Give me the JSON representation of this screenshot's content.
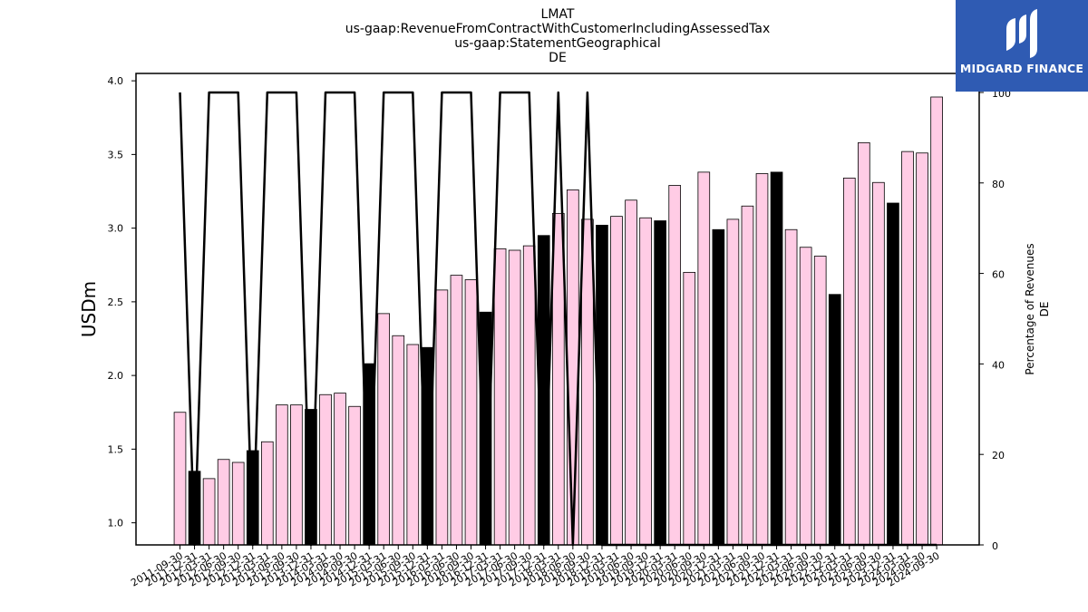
{
  "brand": {
    "name": "MIDGARD FINANCE",
    "logo_icon": "midgard-logo-icon",
    "background": "#2f5bb3"
  },
  "chart_data": {
    "type": "bar",
    "title_lines": [
      "LMAT",
      "us-gaap:RevenueFromContractWithCustomerIncludingAssessedTax",
      "us-gaap:StatementGeographical",
      "DE"
    ],
    "ylabel": "USDm",
    "y2label_lines": [
      "Percentage of Revenues",
      "DE"
    ],
    "ylim": [
      0.85,
      4.05
    ],
    "yticks": [
      1.0,
      1.5,
      2.0,
      2.5,
      3.0,
      3.5,
      4.0
    ],
    "y2lim": [
      0,
      104.2
    ],
    "y2ticks": [
      0,
      20,
      40,
      60,
      80,
      100
    ],
    "colors": {
      "quarterly": "#ffcce5",
      "annual": "#000000",
      "line": "#000000"
    },
    "categories": [
      "2011-09-30",
      "2011-12-31",
      "2012-03-31",
      "2012-06-30",
      "2012-09-30",
      "2012-12-31",
      "2013-03-31",
      "2013-06-30",
      "2013-09-30",
      "2013-12-31",
      "2014-03-31",
      "2014-06-30",
      "2014-09-30",
      "2014-12-31",
      "2015-03-31",
      "2015-06-30",
      "2015-09-30",
      "2015-12-31",
      "2016-03-31",
      "2016-06-30",
      "2016-09-30",
      "2016-12-31",
      "2017-03-31",
      "2017-06-30",
      "2017-09-30",
      "2017-12-31",
      "2018-03-31",
      "2018-06-30",
      "2018-09-30",
      "2018-12-31",
      "2019-03-31",
      "2019-06-30",
      "2019-09-30",
      "2019-12-31",
      "2020-03-31",
      "2020-06-30",
      "2020-09-30",
      "2020-12-31",
      "2021-03-31",
      "2021-06-30",
      "2021-09-30",
      "2021-12-31",
      "2022-03-31",
      "2022-06-30",
      "2022-09-30",
      "2022-12-31",
      "2023-03-31",
      "2023-06-30",
      "2023-09-30",
      "2023-12-31",
      "2024-03-31",
      "2024-06-30",
      "2024-09-30"
    ],
    "values": [
      1.75,
      1.35,
      1.3,
      1.43,
      1.41,
      1.49,
      1.55,
      1.8,
      1.8,
      1.77,
      1.87,
      1.88,
      1.79,
      2.08,
      2.42,
      2.27,
      2.21,
      2.19,
      2.58,
      2.68,
      2.65,
      2.43,
      2.86,
      2.85,
      2.88,
      2.95,
      3.1,
      3.26,
      3.06,
      3.02,
      3.08,
      3.19,
      3.07,
      3.05,
      3.29,
      2.7,
      3.38,
      2.99,
      3.06,
      3.15,
      3.37,
      3.38,
      2.99,
      2.87,
      2.81,
      2.55,
      3.34,
      3.58,
      3.31,
      3.17,
      3.52,
      3.51,
      3.89
    ],
    "annual_flags": [
      0,
      1,
      0,
      0,
      0,
      1,
      0,
      0,
      0,
      1,
      0,
      0,
      0,
      1,
      0,
      0,
      0,
      1,
      0,
      0,
      0,
      1,
      0,
      0,
      0,
      1,
      0,
      0,
      0,
      1,
      0,
      0,
      0,
      1,
      0,
      0,
      0,
      1,
      0,
      0,
      0,
      1,
      0,
      0,
      0,
      1,
      0,
      0,
      0,
      1,
      0,
      0,
      0
    ],
    "percentage_series": [
      100,
      0,
      100,
      100,
      100,
      0,
      100,
      100,
      100,
      0,
      100,
      100,
      100,
      0,
      100,
      100,
      100,
      0,
      100,
      100,
      100,
      0,
      100,
      100,
      100,
      0,
      100,
      0,
      100,
      0,
      0,
      0,
      0,
      0,
      0,
      0,
      0,
      0,
      0,
      0,
      0,
      0,
      0,
      0,
      0,
      0,
      0,
      0,
      0,
      0,
      0,
      0,
      0
    ]
  }
}
